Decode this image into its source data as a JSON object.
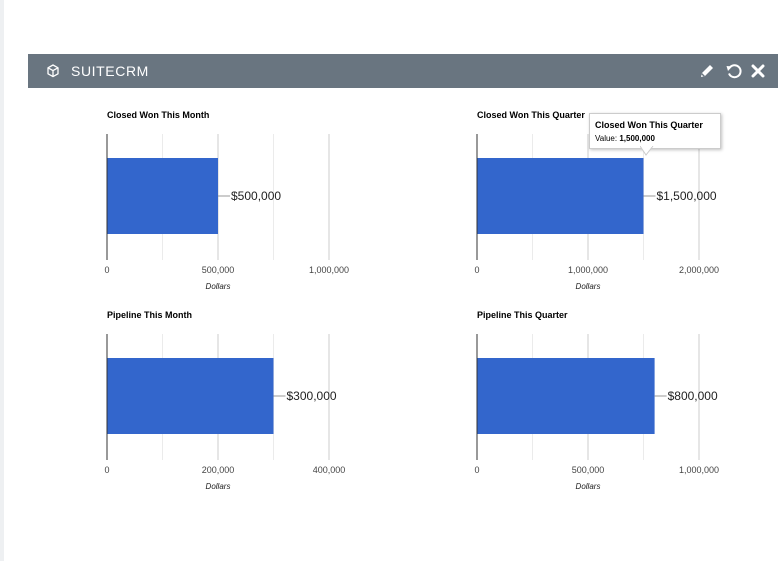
{
  "dashlet": {
    "title": "SUITECRM",
    "icons": {
      "module": "cube-icon",
      "edit": "pencil-icon",
      "refresh": "refresh-icon",
      "close": "close-icon"
    },
    "header_color": "#697580"
  },
  "tooltip": {
    "title": "Closed Won This Quarter",
    "label": "Value:",
    "value": "1,500,000"
  },
  "chart_data": [
    {
      "type": "bar",
      "title": "Closed Won This Month",
      "xlabel": "Dollars",
      "categories": [
        ""
      ],
      "values": [
        500000
      ],
      "value_label": "$500,000",
      "xlim": [
        0,
        1000000
      ],
      "ticks": [
        0,
        500000,
        1000000
      ],
      "tick_labels": [
        "0",
        "500,000",
        "1,000,000"
      ],
      "minor_ticks": [
        250000,
        750000
      ],
      "bar_color": "#3366cc",
      "grid": true
    },
    {
      "type": "bar",
      "title": "Closed Won This Quarter",
      "xlabel": "Dollars",
      "categories": [
        ""
      ],
      "values": [
        1500000
      ],
      "value_label": "$1,500,000",
      "xlim": [
        0,
        2000000
      ],
      "ticks": [
        0,
        1000000,
        2000000
      ],
      "tick_labels": [
        "0",
        "1,000,000",
        "2,000,000"
      ],
      "minor_ticks": [
        500000,
        1500000
      ],
      "bar_color": "#3366cc",
      "grid": true
    },
    {
      "type": "bar",
      "title": "Pipeline This Month",
      "xlabel": "Dollars",
      "categories": [
        ""
      ],
      "values": [
        300000
      ],
      "value_label": "$300,000",
      "xlim": [
        0,
        400000
      ],
      "ticks": [
        0,
        200000,
        400000
      ],
      "tick_labels": [
        "0",
        "200,000",
        "400,000"
      ],
      "minor_ticks": [
        100000,
        300000
      ],
      "bar_color": "#3366cc",
      "grid": true
    },
    {
      "type": "bar",
      "title": "Pipeline This Quarter",
      "xlabel": "Dollars",
      "categories": [
        ""
      ],
      "values": [
        800000
      ],
      "value_label": "$800,000",
      "xlim": [
        0,
        1000000
      ],
      "ticks": [
        0,
        500000,
        1000000
      ],
      "tick_labels": [
        "0",
        "500,000",
        "1,000,000"
      ],
      "minor_ticks": [
        250000,
        750000
      ],
      "bar_color": "#3366cc",
      "grid": true
    }
  ]
}
